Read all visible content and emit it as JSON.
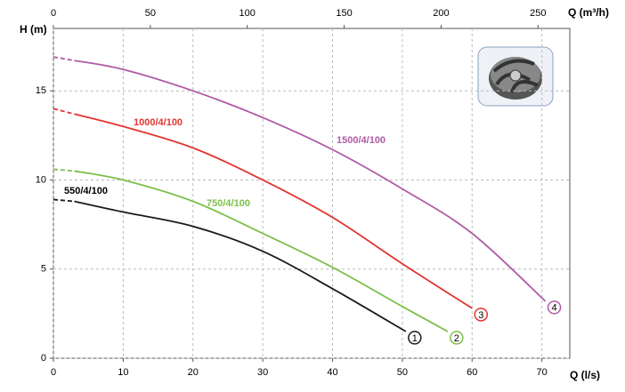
{
  "chart_data": {
    "type": "line",
    "y_label": "H (m)",
    "x_label": "Q (l/s)",
    "x2_label": "Q (m³/h)",
    "xlim": [
      0,
      74
    ],
    "xticks": [
      0,
      10,
      20,
      30,
      40,
      50,
      60,
      70
    ],
    "x2lim": [
      0,
      266.4
    ],
    "x2ticks": [
      0,
      50,
      100,
      150,
      200,
      250
    ],
    "ylim": [
      0,
      18.5
    ],
    "yticks": [
      0,
      5,
      10,
      15
    ],
    "grid": true,
    "dash_first_segment": true,
    "series": [
      {
        "name": "550/4/100",
        "marker": "1",
        "color": "#1a1a1a",
        "x": [
          0,
          3,
          10,
          20,
          30,
          40,
          50.5
        ],
        "values": [
          8.9,
          8.8,
          8.2,
          7.4,
          6.0,
          3.9,
          1.5
        ]
      },
      {
        "name": "750/4/100",
        "marker": "2",
        "color": "#7cbf4a",
        "x": [
          0,
          3,
          10,
          20,
          30,
          40,
          50,
          56.5
        ],
        "values": [
          10.6,
          10.5,
          10.0,
          8.8,
          7.0,
          5.1,
          2.9,
          1.5
        ]
      },
      {
        "name": "1000/4/100",
        "marker": "3",
        "color": "#e3342f",
        "x": [
          0,
          3,
          10,
          20,
          30,
          40,
          50,
          60
        ],
        "values": [
          14.0,
          13.7,
          13.0,
          11.8,
          10.0,
          7.9,
          5.3,
          2.8
        ]
      },
      {
        "name": "1500/4/100",
        "marker": "4",
        "color": "#b05aa6",
        "x": [
          0,
          3,
          10,
          20,
          30,
          40,
          50,
          60,
          70.5
        ],
        "values": [
          16.9,
          16.7,
          16.2,
          15.0,
          13.5,
          11.7,
          9.5,
          7.0,
          3.2
        ]
      }
    ]
  }
}
